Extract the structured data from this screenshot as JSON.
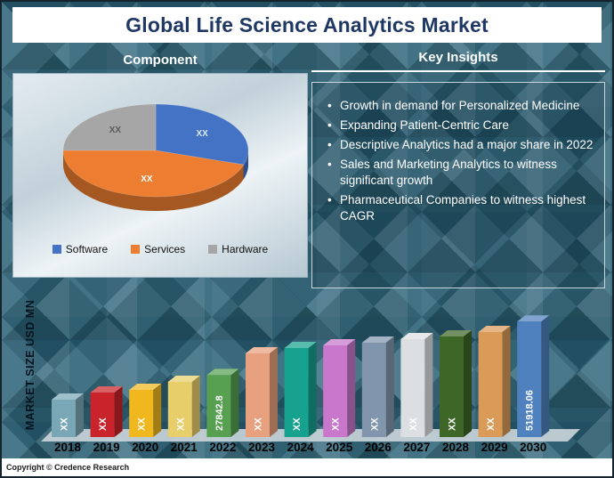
{
  "page": {
    "title": "Global Life Science Analytics Market",
    "copyright": "Copyright © Credence Research"
  },
  "component_section": {
    "heading": "Component",
    "legend": [
      {
        "label": "Software",
        "color": "#4472C4"
      },
      {
        "label": "Services",
        "color": "#ED7D31"
      },
      {
        "label": "Hardware",
        "color": "#A6A6A6"
      }
    ]
  },
  "insights_section": {
    "heading": "Key Insights",
    "items": [
      "Growth in demand for Personalized Medicine",
      "Expanding Patient-Centric Care",
      "Descriptive Analytics had a major share in 2022",
      "Sales and Marketing Analytics to witness significant growth",
      "Pharmaceutical Companies to witness highest CAGR"
    ]
  },
  "chart_data": [
    {
      "type": "pie",
      "title": "Component",
      "style": "3d",
      "labels": [
        "Software",
        "Services",
        "Hardware"
      ],
      "data_labels": [
        "XX",
        "XX",
        "XX"
      ],
      "values": [
        30,
        45,
        25
      ],
      "colors": [
        "#4472C4",
        "#ED7D31",
        "#A6A6A6"
      ],
      "label_colors": [
        "#DDE8F6",
        "#FFFFFF",
        "#595959"
      ],
      "legend_position": "bottom"
    },
    {
      "type": "bar",
      "style": "3d",
      "title": "",
      "xlabel": "",
      "ylabel": "MARKET SIZE USD MN",
      "categories": [
        "2018",
        "2019",
        "2020",
        "2021",
        "2022",
        "2023",
        "2024",
        "2025",
        "2026",
        "2027",
        "2028",
        "2029",
        "2030"
      ],
      "value_labels": [
        "XX",
        "XX",
        "XX",
        "XX",
        "27842.8",
        "XX",
        "XX",
        "XX",
        "XX",
        "XX",
        "XX",
        "XX",
        "51918.06"
      ],
      "values": [
        16800,
        20000,
        21200,
        24800,
        27842.8,
        37600,
        40000,
        41200,
        42400,
        44000,
        45200,
        47200,
        51918.06
      ],
      "colors": [
        "#7AA7B5",
        "#C9242B",
        "#F0B71E",
        "#E8CE6A",
        "#57A051",
        "#E8A17E",
        "#16A28E",
        "#C877CB",
        "#8196AC",
        "#DCDFE2",
        "#3D6627",
        "#DA9A58",
        "#4E81BD"
      ],
      "ylim": [
        0,
        55000
      ],
      "grid": false,
      "legend_position": "none"
    }
  ]
}
